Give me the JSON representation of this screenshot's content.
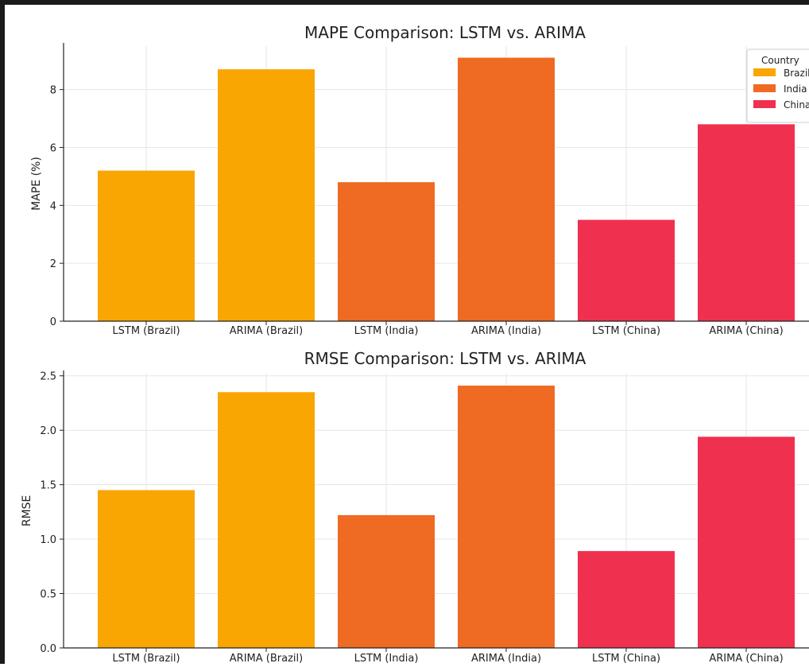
{
  "chart_data": [
    {
      "type": "bar",
      "title": "MAPE Comparison: LSTM vs. ARIMA",
      "xlabel": "",
      "ylabel": "MAPE (%)",
      "ylim": [
        0,
        9.5
      ],
      "yticks": [
        0,
        2,
        4,
        6,
        8
      ],
      "ytick_labels": [
        "0",
        "2",
        "4",
        "6",
        "8"
      ],
      "grid": true,
      "categories": [
        "LSTM (Brazil)",
        "ARIMA (Brazil)",
        "LSTM (India)",
        "ARIMA (India)",
        "LSTM (China)",
        "ARIMA (China)"
      ],
      "values": [
        5.2,
        8.7,
        4.8,
        9.1,
        3.5,
        6.8
      ],
      "bar_groups": [
        "Brazil",
        "Brazil",
        "India",
        "India",
        "China",
        "China"
      ],
      "legend": {
        "title": "Country",
        "placement": "top-right",
        "entries": [
          {
            "label": "Brazil",
            "color": "#f9a602"
          },
          {
            "label": "India",
            "color": "#ef6a22"
          },
          {
            "label": "China",
            "color": "#f0304f"
          }
        ]
      }
    },
    {
      "type": "bar",
      "title": "RMSE Comparison: LSTM vs. ARIMA",
      "xlabel": "",
      "ylabel": "RMSE",
      "ylim": [
        0,
        2.52
      ],
      "yticks": [
        0,
        0.5,
        1.0,
        1.5,
        2.0,
        2.5
      ],
      "ytick_labels": [
        "0.0",
        "0.5",
        "1.0",
        "1.5",
        "2.0",
        "2.5"
      ],
      "grid": true,
      "categories": [
        "LSTM (Brazil)",
        "ARIMA (Brazil)",
        "LSTM (India)",
        "ARIMA (India)",
        "LSTM (China)",
        "ARIMA (China)"
      ],
      "values": [
        1.45,
        2.35,
        1.22,
        2.41,
        0.89,
        1.94
      ],
      "bar_groups": [
        "Brazil",
        "Brazil",
        "India",
        "India",
        "China",
        "China"
      ]
    }
  ],
  "colors": {
    "Brazil": "#f9a602",
    "India": "#ef6a22",
    "China": "#f0304f",
    "grid": "#e6e6e6",
    "axis": "#222222"
  }
}
